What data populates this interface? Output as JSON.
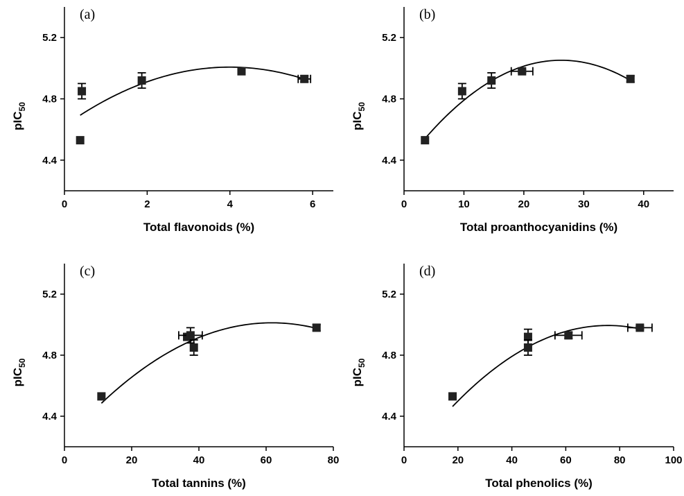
{
  "chart_data": [
    {
      "type": "scatter",
      "panel_label": "(a)",
      "xlabel": "Total flavonoids (%)",
      "ylabel": "pIC",
      "ylabel_sub": "50",
      "xlim": [
        0,
        6.5
      ],
      "ylim": [
        4.2,
        5.4
      ],
      "xticks": [
        0,
        2,
        4,
        6
      ],
      "yticks": [
        4.4,
        4.8,
        5.2
      ],
      "points": [
        {
          "x": 0.38,
          "y": 4.53,
          "xerr": 0,
          "yerr": 0
        },
        {
          "x": 0.42,
          "y": 4.85,
          "xerr": 0,
          "yerr": 0.05
        },
        {
          "x": 1.87,
          "y": 4.92,
          "xerr": 0,
          "yerr": 0.05
        },
        {
          "x": 4.28,
          "y": 4.98,
          "xerr": 0,
          "yerr": 0.01
        },
        {
          "x": 5.8,
          "y": 4.93,
          "xerr": 0.15,
          "yerr": 0.02
        }
      ],
      "fit_quadratic": [
        4.6236,
        0.1919,
        -0.024
      ],
      "fit_range": [
        0.38,
        5.8
      ]
    },
    {
      "type": "scatter",
      "panel_label": "(b)",
      "xlabel": "Total proanthocyanidins (%)",
      "ylabel": "pIC",
      "ylabel_sub": "50",
      "xlim": [
        0,
        45
      ],
      "ylim": [
        4.2,
        5.4
      ],
      "xticks": [
        0,
        10,
        20,
        30,
        40
      ],
      "yticks": [
        4.4,
        4.8,
        5.2
      ],
      "points": [
        {
          "x": 3.5,
          "y": 4.53,
          "xerr": 0,
          "yerr": 0
        },
        {
          "x": 9.7,
          "y": 4.85,
          "xerr": 0,
          "yerr": 0.05
        },
        {
          "x": 14.6,
          "y": 4.92,
          "xerr": 0,
          "yerr": 0.05
        },
        {
          "x": 19.7,
          "y": 4.98,
          "xerr": 1.8,
          "yerr": 0.01
        },
        {
          "x": 37.8,
          "y": 4.93,
          "xerr": 0,
          "yerr": 0.02
        }
      ],
      "fit_quadratic": [
        4.3711,
        0.0519,
        -0.000989
      ],
      "fit_range": [
        3.5,
        37.8
      ]
    },
    {
      "type": "scatter",
      "panel_label": "(c)",
      "xlabel": "Total tannins (%)",
      "ylabel": "pIC",
      "ylabel_sub": "50",
      "xlim": [
        0,
        80
      ],
      "ylim": [
        4.2,
        5.4
      ],
      "xticks": [
        0,
        20,
        40,
        60,
        80
      ],
      "yticks": [
        4.4,
        4.8,
        5.2
      ],
      "points": [
        {
          "x": 11,
          "y": 4.53,
          "xerr": 0,
          "yerr": 0
        },
        {
          "x": 36.5,
          "y": 4.92,
          "xerr": 0,
          "yerr": 0.02
        },
        {
          "x": 37.5,
          "y": 4.93,
          "xerr": 3.5,
          "yerr": 0.05
        },
        {
          "x": 38.5,
          "y": 4.85,
          "xerr": 0,
          "yerr": 0.05
        },
        {
          "x": 75,
          "y": 4.98,
          "xerr": 0,
          "yerr": 0.02
        }
      ],
      "fit_quadratic": [
        4.2315,
        0.0253,
        -0.000205
      ],
      "fit_range": [
        11,
        75
      ]
    },
    {
      "type": "scatter",
      "panel_label": "(d)",
      "xlabel": "Total phenolics (%)",
      "ylabel": "pIC",
      "ylabel_sub": "50",
      "xlim": [
        0,
        100
      ],
      "ylim": [
        4.2,
        5.4
      ],
      "xticks": [
        0,
        20,
        40,
        60,
        80,
        100
      ],
      "yticks": [
        4.4,
        4.8,
        5.2
      ],
      "points": [
        {
          "x": 18,
          "y": 4.53,
          "xerr": 0,
          "yerr": 0
        },
        {
          "x": 46,
          "y": 4.92,
          "xerr": 0,
          "yerr": 0.05
        },
        {
          "x": 46,
          "y": 4.85,
          "xerr": 0,
          "yerr": 0.05
        },
        {
          "x": 61,
          "y": 4.93,
          "xerr": 5,
          "yerr": 0.02
        },
        {
          "x": 87.5,
          "y": 4.98,
          "xerr": 4.5,
          "yerr": 0.01
        }
      ],
      "fit_quadratic": [
        4.0796,
        0.0242,
        -0.00016
      ],
      "fit_range": [
        18,
        87.5
      ]
    }
  ]
}
